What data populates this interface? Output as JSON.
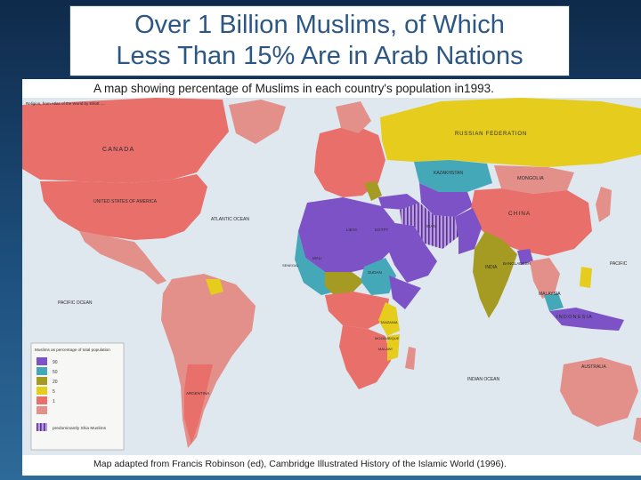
{
  "slide": {
    "title_line1": "Over 1 Billion Muslims, of Which",
    "title_line2": "Less Than 15% Are in Arab Nations"
  },
  "map": {
    "caption": "A map showing percentage of Muslims in each country's population in1993.",
    "credit": "Map adapted from Francis Robinson (ed), Cambridge Illustrated History of the Islamic World (1996).",
    "inset_note": "Religion, from Atlas of the World by Elliott ....",
    "colors": {
      "ocean": "#dfe7ef",
      "band_90": "#7d52c6",
      "band_50": "#44a8b8",
      "band_20": "#a59a22",
      "band_5": "#e6cc1c",
      "band_1": "#e86f6a",
      "band_lt1": "#e3908a",
      "shia": "#b69ed8"
    },
    "labels": {
      "canada": "CANADA",
      "usa": "UNITED STATES OF AMERICA",
      "russia": "RUSSIAN FEDERATION",
      "kazakhstan": "KAZAKHSTAN",
      "mongolia": "MONGOLIA",
      "china": "CHINA",
      "india": "INDIA",
      "bangladesh": "BANGLADESH",
      "malaysia": "MALAYSIA",
      "indonesia": "INDONESIA",
      "atlantic": "ATLANTIC OCEAN",
      "pacific": "PACIFIC OCEAN",
      "pacific_east": "PACIFIC",
      "indian": "INDIAN OCEAN",
      "argentina": "ARGENTINA",
      "australia": "AUSTRALIA",
      "libya": "LIBYA",
      "egypt": "EGYPT",
      "sudan": "SUDAN",
      "iran": "IRAN",
      "mali": "MALI",
      "tanzania": "TANZANIA",
      "mozambique": "MOZAMBIQUE",
      "malawi": "MALAWI",
      "senegal": "SENEGAL"
    },
    "legend": {
      "title": "Muslims as percentage of total population",
      "bands": [
        "90",
        "50",
        "20",
        "5",
        "1"
      ],
      "shia_label": "predominantly Shia Muslims"
    }
  }
}
